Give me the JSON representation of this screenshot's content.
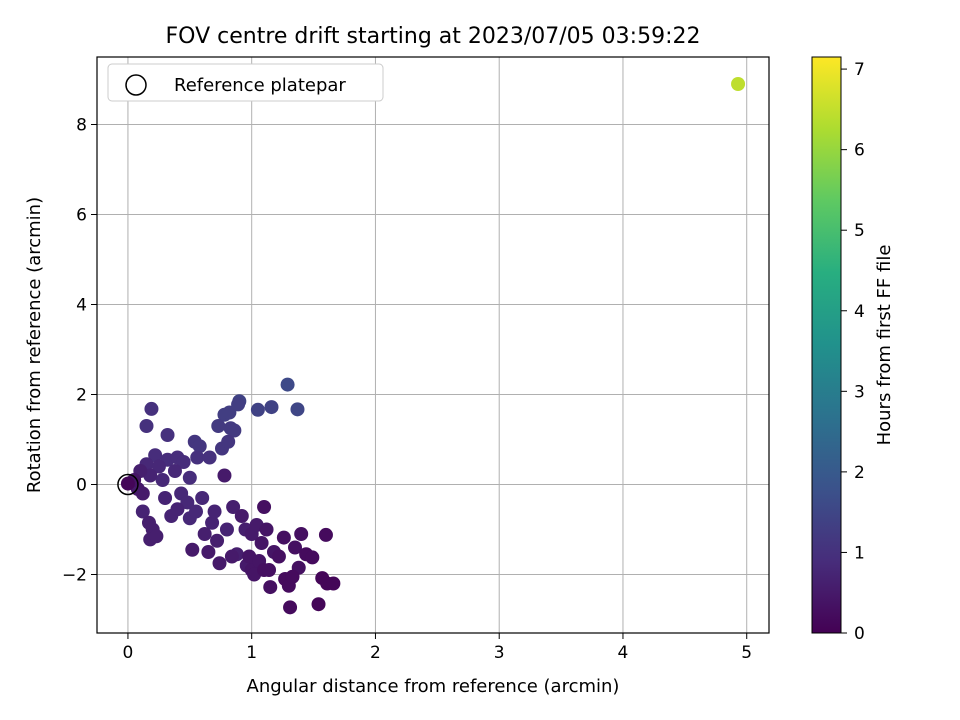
{
  "chart_data": {
    "type": "scatter",
    "title": "FOV centre drift starting at 2023/07/05 03:59:22",
    "xlabel": "Angular distance from reference (arcmin)",
    "ylabel": "Rotation from reference (arcmin)",
    "xlim": [
      -0.25,
      5.18
    ],
    "ylim": [
      -3.3,
      9.5
    ],
    "xticks": [
      0,
      1,
      2,
      3,
      4,
      5
    ],
    "yticks": [
      -2,
      0,
      2,
      4,
      6,
      8
    ],
    "ytick_labels": [
      "−2",
      "0",
      "2",
      "4",
      "6",
      "8"
    ],
    "grid": true,
    "legend": {
      "placement": "top-left",
      "entries": [
        {
          "label": "Reference platepar",
          "marker": "hollow-circle"
        }
      ]
    },
    "reference_point": {
      "x": 0,
      "y": 0
    },
    "colorbar": {
      "label": "Hours from first FF file",
      "range": [
        0,
        7.15
      ],
      "ticks": [
        0,
        1,
        2,
        3,
        4,
        5,
        6,
        7
      ],
      "colormap": "viridis"
    },
    "points": [
      {
        "x": 0.0,
        "y": 0.02,
        "h": 0.1
      },
      {
        "x": 0.05,
        "y": 0.1,
        "h": 0.4
      },
      {
        "x": 0.08,
        "y": -0.1,
        "h": 0.5
      },
      {
        "x": 0.1,
        "y": 0.3,
        "h": 0.6
      },
      {
        "x": 0.12,
        "y": -0.2,
        "h": 0.5
      },
      {
        "x": 0.15,
        "y": 0.45,
        "h": 0.8
      },
      {
        "x": 0.18,
        "y": 0.2,
        "h": 0.7
      },
      {
        "x": 0.12,
        "y": -0.6,
        "h": 0.7
      },
      {
        "x": 0.17,
        "y": -0.85,
        "h": 0.6
      },
      {
        "x": 0.2,
        "y": -1.0,
        "h": 0.6
      },
      {
        "x": 0.18,
        "y": -1.22,
        "h": 0.6
      },
      {
        "x": 0.23,
        "y": -1.15,
        "h": 0.6
      },
      {
        "x": 0.15,
        "y": 1.3,
        "h": 1.0
      },
      {
        "x": 0.19,
        "y": 1.68,
        "h": 1.0
      },
      {
        "x": 0.22,
        "y": 0.65,
        "h": 0.9
      },
      {
        "x": 0.25,
        "y": 0.4,
        "h": 0.8
      },
      {
        "x": 0.28,
        "y": 0.1,
        "h": 0.8
      },
      {
        "x": 0.3,
        "y": -0.3,
        "h": 0.7
      },
      {
        "x": 0.32,
        "y": 0.55,
        "h": 0.9
      },
      {
        "x": 0.32,
        "y": 1.1,
        "h": 1.0
      },
      {
        "x": 0.35,
        "y": -0.7,
        "h": 0.7
      },
      {
        "x": 0.38,
        "y": 0.3,
        "h": 0.8
      },
      {
        "x": 0.4,
        "y": -0.55,
        "h": 0.7
      },
      {
        "x": 0.4,
        "y": 0.6,
        "h": 0.9
      },
      {
        "x": 0.43,
        "y": -0.2,
        "h": 0.8
      },
      {
        "x": 0.45,
        "y": 0.5,
        "h": 0.9
      },
      {
        "x": 0.48,
        "y": -0.4,
        "h": 0.8
      },
      {
        "x": 0.5,
        "y": 0.15,
        "h": 0.9
      },
      {
        "x": 0.5,
        "y": -0.75,
        "h": 0.8
      },
      {
        "x": 0.52,
        "y": -1.45,
        "h": 0.5
      },
      {
        "x": 0.54,
        "y": 0.95,
        "h": 1.1
      },
      {
        "x": 0.55,
        "y": -0.6,
        "h": 0.8
      },
      {
        "x": 0.56,
        "y": 0.6,
        "h": 1.0
      },
      {
        "x": 0.58,
        "y": 0.85,
        "h": 1.1
      },
      {
        "x": 0.6,
        "y": -0.3,
        "h": 0.8
      },
      {
        "x": 0.62,
        "y": -1.1,
        "h": 0.6
      },
      {
        "x": 0.65,
        "y": -1.5,
        "h": 0.5
      },
      {
        "x": 0.66,
        "y": 0.6,
        "h": 1.0
      },
      {
        "x": 0.68,
        "y": -0.85,
        "h": 0.7
      },
      {
        "x": 0.7,
        "y": -0.6,
        "h": 0.7
      },
      {
        "x": 0.72,
        "y": -1.25,
        "h": 0.6
      },
      {
        "x": 0.73,
        "y": 1.3,
        "h": 1.2
      },
      {
        "x": 0.74,
        "y": -1.75,
        "h": 0.5
      },
      {
        "x": 0.76,
        "y": 0.8,
        "h": 1.1
      },
      {
        "x": 0.78,
        "y": 0.2,
        "h": 0.5
      },
      {
        "x": 0.78,
        "y": 1.55,
        "h": 1.3
      },
      {
        "x": 0.8,
        "y": -1.0,
        "h": 0.7
      },
      {
        "x": 0.81,
        "y": 0.95,
        "h": 1.1
      },
      {
        "x": 0.82,
        "y": 1.6,
        "h": 1.3
      },
      {
        "x": 0.83,
        "y": 1.25,
        "h": 1.2
      },
      {
        "x": 0.84,
        "y": -1.6,
        "h": 0.5
      },
      {
        "x": 0.85,
        "y": -0.5,
        "h": 0.6
      },
      {
        "x": 0.86,
        "y": 1.2,
        "h": 1.2
      },
      {
        "x": 0.88,
        "y": -1.55,
        "h": 0.6
      },
      {
        "x": 0.89,
        "y": 1.78,
        "h": 1.3
      },
      {
        "x": 0.9,
        "y": 1.85,
        "h": 1.4
      },
      {
        "x": 0.92,
        "y": -0.7,
        "h": 0.5
      },
      {
        "x": 0.95,
        "y": -1.0,
        "h": 0.6
      },
      {
        "x": 0.96,
        "y": -1.8,
        "h": 0.5
      },
      {
        "x": 0.98,
        "y": -1.6,
        "h": 0.4
      },
      {
        "x": 1.0,
        "y": -1.9,
        "h": 0.4
      },
      {
        "x": 1.0,
        "y": -1.1,
        "h": 0.5
      },
      {
        "x": 1.02,
        "y": -2.0,
        "h": 0.4
      },
      {
        "x": 1.04,
        "y": -0.9,
        "h": 0.5
      },
      {
        "x": 1.05,
        "y": 1.66,
        "h": 1.4
      },
      {
        "x": 1.06,
        "y": -1.7,
        "h": 0.4
      },
      {
        "x": 1.08,
        "y": -1.3,
        "h": 0.4
      },
      {
        "x": 1.1,
        "y": -0.5,
        "h": 0.3
      },
      {
        "x": 1.1,
        "y": -1.9,
        "h": 0.3
      },
      {
        "x": 1.12,
        "y": -1.0,
        "h": 0.4
      },
      {
        "x": 1.14,
        "y": -1.9,
        "h": 0.3
      },
      {
        "x": 1.15,
        "y": -2.28,
        "h": 0.3
      },
      {
        "x": 1.16,
        "y": 1.72,
        "h": 1.4
      },
      {
        "x": 1.18,
        "y": -1.5,
        "h": 0.4
      },
      {
        "x": 1.22,
        "y": -1.6,
        "h": 0.3
      },
      {
        "x": 1.26,
        "y": -1.18,
        "h": 0.3
      },
      {
        "x": 1.27,
        "y": -2.1,
        "h": 0.2
      },
      {
        "x": 1.29,
        "y": 2.22,
        "h": 1.6
      },
      {
        "x": 1.3,
        "y": -2.25,
        "h": 0.2
      },
      {
        "x": 1.31,
        "y": -2.73,
        "h": 0.2
      },
      {
        "x": 1.33,
        "y": -2.05,
        "h": 0.2
      },
      {
        "x": 1.35,
        "y": -1.4,
        "h": 0.3
      },
      {
        "x": 1.37,
        "y": 1.67,
        "h": 1.5
      },
      {
        "x": 1.38,
        "y": -1.85,
        "h": 0.3
      },
      {
        "x": 1.4,
        "y": -1.1,
        "h": 0.3
      },
      {
        "x": 1.44,
        "y": -1.55,
        "h": 0.2
      },
      {
        "x": 1.49,
        "y": -1.62,
        "h": 0.2
      },
      {
        "x": 1.54,
        "y": -2.66,
        "h": 0.1
      },
      {
        "x": 1.57,
        "y": -2.08,
        "h": 0.1
      },
      {
        "x": 1.6,
        "y": -1.12,
        "h": 0.2
      },
      {
        "x": 1.61,
        "y": -2.2,
        "h": 0.1
      },
      {
        "x": 1.66,
        "y": -2.2,
        "h": 0.1
      },
      {
        "x": 4.93,
        "y": 8.9,
        "h": 6.45
      }
    ]
  }
}
